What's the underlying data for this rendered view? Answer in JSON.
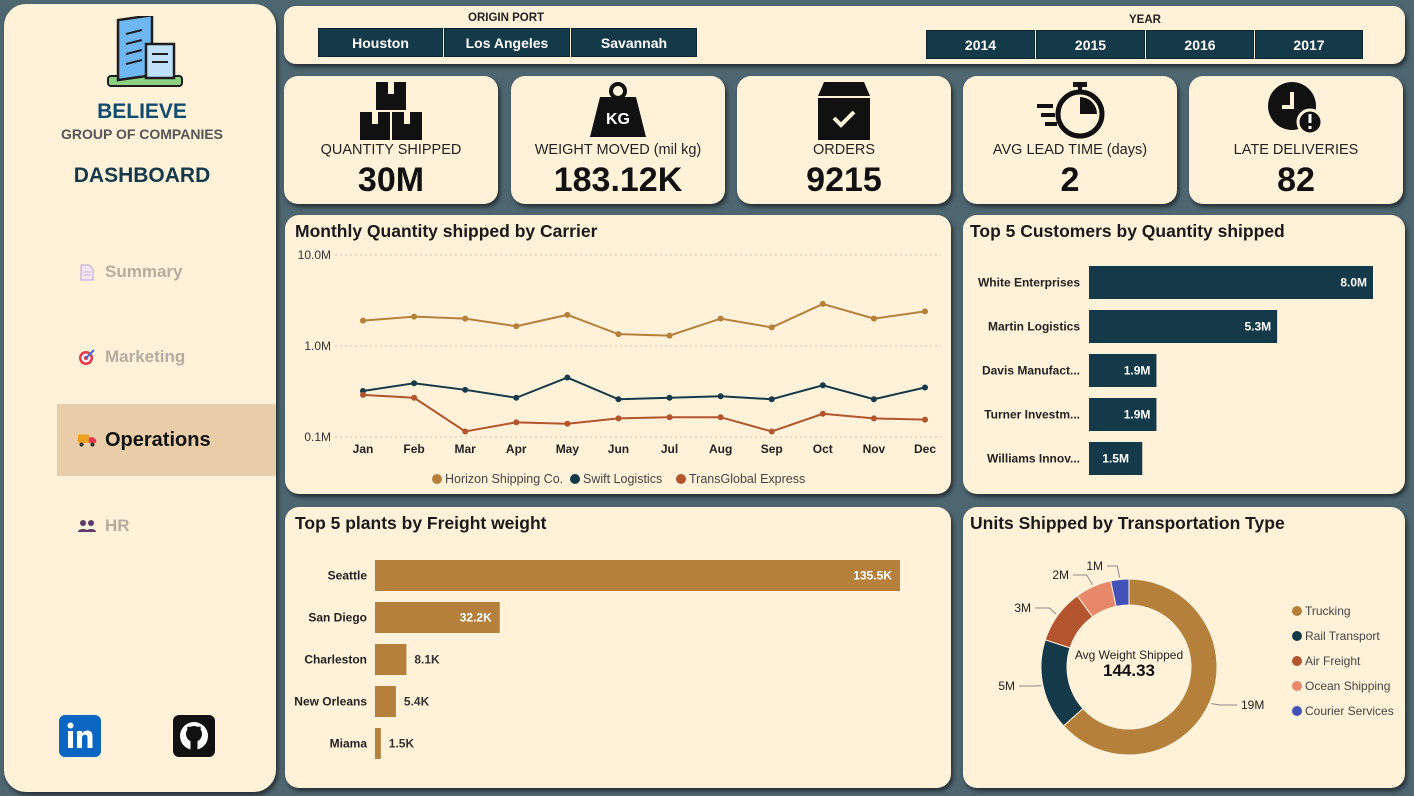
{
  "brand": {
    "name": "BELIEVE",
    "sub": "GROUP OF COMPANIES",
    "dashboard": "DASHBOARD"
  },
  "nav": [
    {
      "label": "Summary",
      "icon": "document-icon"
    },
    {
      "label": "Marketing",
      "icon": "target-icon"
    },
    {
      "label": "Operations",
      "icon": "truck-icon",
      "active": true
    },
    {
      "label": "HR",
      "icon": "people-icon"
    }
  ],
  "filters": {
    "origin_label": "ORIGIN PORT",
    "origin_ports": [
      "Houston",
      "Los Angeles",
      "Savannah"
    ],
    "year_label": "YEAR",
    "years": [
      "2014",
      "2015",
      "2016",
      "2017"
    ]
  },
  "kpis": [
    {
      "label": "QUANTITY SHIPPED",
      "value": "30M",
      "icon": "boxes-icon"
    },
    {
      "label": "WEIGHT MOVED (mil kg)",
      "value": "183.12K",
      "icon": "weight-kg-icon"
    },
    {
      "label": "ORDERS",
      "value": "9215",
      "icon": "box-check-icon"
    },
    {
      "label": "AVG LEAD TIME (days)",
      "value": "2",
      "icon": "stopwatch-icon"
    },
    {
      "label": "LATE DELIVERIES",
      "value": "82",
      "icon": "clock-alert-icon"
    }
  ],
  "colors": {
    "horizon": "#b5803c",
    "swift": "#143a4a",
    "transglobal": "#b2552f",
    "ocean": "#e8886a",
    "courier": "#4352b8",
    "bar_plants": "#b5803c",
    "bar_customers": "#143a4a"
  },
  "chart_data": [
    {
      "type": "line",
      "title": "Monthly Quantity shipped by Carrier",
      "y_scale": "log",
      "ylim": [
        0.1,
        10
      ],
      "y_unit": "M",
      "y_ticks": [
        "10.0M",
        "1.0M",
        "0.1M"
      ],
      "categories": [
        "Jan",
        "Feb",
        "Mar",
        "Apr",
        "May",
        "Jun",
        "Jul",
        "Aug",
        "Sep",
        "Oct",
        "Nov",
        "Dec"
      ],
      "legend_position": "bottom",
      "series": [
        {
          "name": "Horizon Shipping Co.",
          "color": "#b5803c",
          "values": [
            1.9,
            2.1,
            2.0,
            1.65,
            2.2,
            1.35,
            1.3,
            2.0,
            1.6,
            2.9,
            2.0,
            2.4
          ]
        },
        {
          "name": "Swift Logistics",
          "color": "#143a4a",
          "values": [
            0.32,
            0.39,
            0.33,
            0.27,
            0.45,
            0.26,
            0.27,
            0.28,
            0.26,
            0.37,
            0.26,
            0.35
          ]
        },
        {
          "name": "TransGlobal Express",
          "color": "#b2552f",
          "values": [
            0.29,
            0.27,
            0.115,
            0.145,
            0.14,
            0.16,
            0.165,
            0.165,
            0.115,
            0.18,
            0.16,
            0.155
          ]
        }
      ]
    },
    {
      "type": "bar",
      "orientation": "horizontal",
      "title": "Top 5 Customers by Quantity shipped",
      "categories": [
        "White Enterprises",
        "Martin Logistics",
        "Davis Manufact...",
        "Turner Investm...",
        "Williams Innov..."
      ],
      "values": [
        8.0,
        5.3,
        1.9,
        1.9,
        1.5
      ],
      "labels": [
        "8.0M",
        "5.3M",
        "1.9M",
        "1.9M",
        "1.5M"
      ]
    },
    {
      "type": "bar",
      "orientation": "horizontal",
      "title": "Top 5 plants by Freight weight",
      "categories": [
        "Seattle",
        "San Diego",
        "Charleston",
        "New Orleans",
        "Miama"
      ],
      "values": [
        135.5,
        32.2,
        8.1,
        5.4,
        1.5
      ],
      "labels": [
        "135.5K",
        "32.2K",
        "8.1K",
        "5.4K",
        "1.5K"
      ]
    },
    {
      "type": "pie",
      "donut": true,
      "title": "Units Shipped by Transportation Type",
      "center_label": "Avg Weight Shipped",
      "center_value": "144.33",
      "categories": [
        "Trucking",
        "Rail Transport",
        "Air Freight",
        "Ocean Shipping",
        "Courier Services"
      ],
      "values": [
        19,
        5,
        3,
        2,
        1
      ],
      "labels": [
        "19M",
        "5M",
        "3M",
        "2M",
        "1M"
      ],
      "colors": [
        "#b5803c",
        "#143a4a",
        "#b2552f",
        "#e8886a",
        "#4352b8"
      ],
      "legend_position": "right"
    }
  ]
}
